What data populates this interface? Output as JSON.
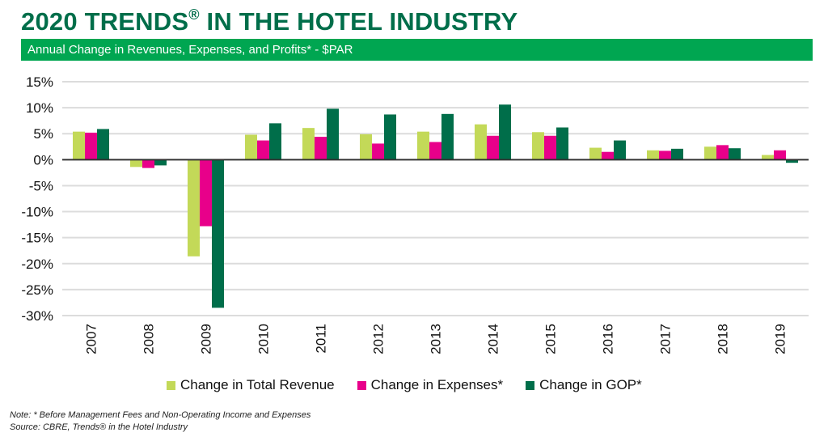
{
  "header": {
    "title": "2020 TRENDS",
    "title_mark": "®",
    "title_rest": " IN THE HOTEL INDUSTRY",
    "subtitle": "Annual Change in Revenues, Expenses, and Profits* - $PAR"
  },
  "colors": {
    "title": "#006e4a",
    "banner": "#00a651"
  },
  "chart_data": {
    "type": "bar",
    "categories": [
      "2007",
      "2008",
      "2009",
      "2010",
      "2011",
      "2012",
      "2013",
      "2014",
      "2015",
      "2016",
      "2017",
      "2018",
      "2019"
    ],
    "series": [
      {
        "name": "Change in Total Revenue",
        "color": "#c3d958",
        "values": [
          5.4,
          -1.4,
          -18.6,
          4.8,
          6.1,
          4.9,
          5.4,
          6.8,
          5.3,
          2.3,
          1.8,
          2.5,
          0.9
        ]
      },
      {
        "name": "Change in Expenses*",
        "color": "#e8008a",
        "values": [
          5.2,
          -1.6,
          -12.8,
          3.7,
          4.4,
          3.1,
          3.4,
          4.6,
          4.6,
          1.5,
          1.7,
          2.8,
          1.8
        ]
      },
      {
        "name": "Change in GOP*",
        "color": "#006e4a",
        "values": [
          5.9,
          -1.1,
          -28.5,
          7.0,
          9.8,
          8.7,
          8.8,
          10.6,
          6.2,
          3.7,
          2.1,
          2.2,
          -0.6
        ]
      }
    ],
    "ylim": [
      -30,
      15
    ],
    "yticks": [
      "15%",
      "10%",
      "5%",
      "0%",
      "-5%",
      "-10%",
      "-15%",
      "-20%",
      "-25%",
      "-30%"
    ],
    "grid": true,
    "legend": "bottom"
  },
  "notes": {
    "note": "Note: * Before Management Fees and Non-Operating Income and Expenses",
    "source": "Source: CBRE, Trends® in the Hotel Industry"
  }
}
